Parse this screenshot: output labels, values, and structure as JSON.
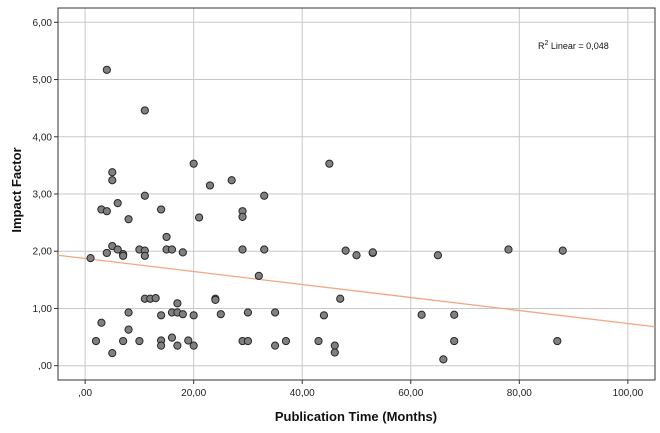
{
  "chart_data": {
    "type": "scatter",
    "xlabel": "Publication Time (Months)",
    "ylabel": "Impact Factor",
    "xlim": [
      -5,
      105
    ],
    "ylim": [
      -0.25,
      6.25
    ],
    "x_ticks": [
      0,
      20,
      40,
      60,
      80,
      100
    ],
    "x_tick_labels": [
      ",00",
      "20,00",
      "40,00",
      "60,00",
      "80,00",
      "100,00"
    ],
    "y_ticks": [
      0,
      1,
      2,
      3,
      4,
      5,
      6
    ],
    "y_tick_labels": [
      ",00",
      "1,00",
      "2,00",
      "3,00",
      "4,00",
      "5,00",
      "6,00"
    ],
    "grid": true,
    "annotation": {
      "prefix": "R",
      "sup": "2",
      "suffix": " Linear = 0,048"
    },
    "colors": {
      "points": "#808080",
      "point_stroke": "#262626",
      "fit_line": "#f4a582",
      "grid": "#c8c8c8",
      "frame": "#333333"
    },
    "fit_line": {
      "x": [
        -5,
        105
      ],
      "y": [
        1.93,
        0.68
      ]
    },
    "points": [
      {
        "x": 1,
        "y": 1.88
      },
      {
        "x": 2,
        "y": 0.43
      },
      {
        "x": 3,
        "y": 2.73
      },
      {
        "x": 3,
        "y": 0.75
      },
      {
        "x": 4,
        "y": 5.17
      },
      {
        "x": 4,
        "y": 2.7
      },
      {
        "x": 4,
        "y": 1.97
      },
      {
        "x": 5,
        "y": 3.38
      },
      {
        "x": 5,
        "y": 3.24
      },
      {
        "x": 5,
        "y": 2.09
      },
      {
        "x": 5,
        "y": 0.22
      },
      {
        "x": 6,
        "y": 2.84
      },
      {
        "x": 6,
        "y": 2.03
      },
      {
        "x": 7,
        "y": 1.95
      },
      {
        "x": 7,
        "y": 1.92
      },
      {
        "x": 7,
        "y": 0.43
      },
      {
        "x": 8,
        "y": 2.56
      },
      {
        "x": 8,
        "y": 0.93
      },
      {
        "x": 8,
        "y": 0.63
      },
      {
        "x": 10,
        "y": 2.03
      },
      {
        "x": 10,
        "y": 0.43
      },
      {
        "x": 11,
        "y": 4.46
      },
      {
        "x": 11,
        "y": 2.97
      },
      {
        "x": 11,
        "y": 2.01
      },
      {
        "x": 11,
        "y": 1.92
      },
      {
        "x": 11,
        "y": 1.17
      },
      {
        "x": 12,
        "y": 1.17
      },
      {
        "x": 13,
        "y": 1.18
      },
      {
        "x": 14,
        "y": 2.73
      },
      {
        "x": 14,
        "y": 0.88
      },
      {
        "x": 14,
        "y": 0.44
      },
      {
        "x": 14,
        "y": 0.35
      },
      {
        "x": 15,
        "y": 2.25
      },
      {
        "x": 15,
        "y": 2.03
      },
      {
        "x": 16,
        "y": 2.03
      },
      {
        "x": 16,
        "y": 0.93
      },
      {
        "x": 16,
        "y": 0.49
      },
      {
        "x": 17,
        "y": 1.09
      },
      {
        "x": 17,
        "y": 0.93
      },
      {
        "x": 17,
        "y": 0.35
      },
      {
        "x": 18,
        "y": 1.98
      },
      {
        "x": 18,
        "y": 0.9
      },
      {
        "x": 19,
        "y": 0.44
      },
      {
        "x": 20,
        "y": 3.53
      },
      {
        "x": 20,
        "y": 0.88
      },
      {
        "x": 20,
        "y": 0.35
      },
      {
        "x": 21,
        "y": 2.59
      },
      {
        "x": 23,
        "y": 3.15
      },
      {
        "x": 24,
        "y": 1.17
      },
      {
        "x": 24,
        "y": 1.15
      },
      {
        "x": 25,
        "y": 0.9
      },
      {
        "x": 27,
        "y": 3.24
      },
      {
        "x": 29,
        "y": 2.7
      },
      {
        "x": 29,
        "y": 2.6
      },
      {
        "x": 29,
        "y": 2.03
      },
      {
        "x": 29,
        "y": 0.43
      },
      {
        "x": 30,
        "y": 0.93
      },
      {
        "x": 30,
        "y": 0.43
      },
      {
        "x": 32,
        "y": 1.57
      },
      {
        "x": 33,
        "y": 2.97
      },
      {
        "x": 33,
        "y": 2.03
      },
      {
        "x": 35,
        "y": 0.93
      },
      {
        "x": 35,
        "y": 0.35
      },
      {
        "x": 37,
        "y": 0.43
      },
      {
        "x": 43,
        "y": 0.43
      },
      {
        "x": 44,
        "y": 0.88
      },
      {
        "x": 45,
        "y": 3.53
      },
      {
        "x": 46,
        "y": 0.35
      },
      {
        "x": 46,
        "y": 0.23
      },
      {
        "x": 47,
        "y": 1.17
      },
      {
        "x": 48,
        "y": 2.01
      },
      {
        "x": 50,
        "y": 1.93
      },
      {
        "x": 53,
        "y": 1.97
      },
      {
        "x": 53,
        "y": 1.98
      },
      {
        "x": 62,
        "y": 0.89
      },
      {
        "x": 65,
        "y": 1.93
      },
      {
        "x": 66,
        "y": 0.11
      },
      {
        "x": 68,
        "y": 0.89
      },
      {
        "x": 68,
        "y": 0.43
      },
      {
        "x": 78,
        "y": 2.03
      },
      {
        "x": 87,
        "y": 0.43
      },
      {
        "x": 88,
        "y": 2.01
      }
    ]
  }
}
